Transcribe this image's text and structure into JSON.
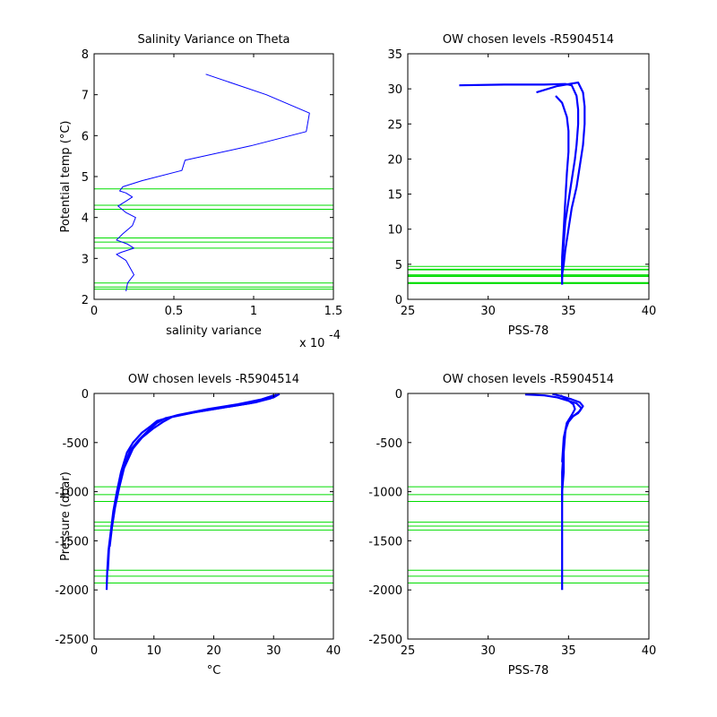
{
  "chart_data": [
    {
      "type": "line",
      "title": "Salinity Variance on Theta",
      "xlabel": "salinity variance",
      "ylabel": "Potential temp (°C)",
      "x_multiplier_label": "x 10",
      "x_multiplier_exp": "-4",
      "xlim": [
        0,
        1.5
      ],
      "ylim": [
        2,
        8
      ],
      "xticks": [
        0,
        0.5,
        1,
        1.5
      ],
      "yticks": [
        2,
        3,
        4,
        5,
        6,
        7,
        8
      ],
      "series": [
        {
          "color": "#0000ff",
          "x": [
            0.7,
            1.08,
            1.35,
            1.33,
            0.98,
            0.57,
            0.55,
            0.3,
            0.18,
            0.16,
            0.2,
            0.24,
            0.2,
            0.15,
            0.2,
            0.26,
            0.24,
            0.18,
            0.14,
            0.21,
            0.25,
            0.17,
            0.14,
            0.2,
            0.25,
            0.21,
            0.2
          ],
          "y": [
            7.5,
            7.0,
            6.55,
            6.1,
            5.75,
            5.4,
            5.15,
            4.9,
            4.75,
            4.65,
            4.6,
            4.5,
            4.4,
            4.28,
            4.12,
            4.0,
            3.8,
            3.6,
            3.45,
            3.35,
            3.25,
            3.15,
            3.1,
            2.95,
            2.6,
            2.4,
            2.2
          ]
        }
      ],
      "hlines": [
        4.7,
        4.3,
        4.2,
        3.5,
        3.4,
        3.25,
        2.4,
        2.3,
        2.25
      ],
      "hline_color": "#00dd00"
    },
    {
      "type": "line",
      "title": "OW chosen levels -R5904514",
      "xlabel": "PSS-78",
      "ylabel": "",
      "xlim": [
        25,
        40
      ],
      "ylim": [
        0,
        35
      ],
      "xticks": [
        25,
        30,
        35,
        40
      ],
      "yticks": [
        0,
        5,
        10,
        15,
        20,
        25,
        30,
        35
      ],
      "series": [
        {
          "color": "#0000ff",
          "x": [
            28.2,
            31.0,
            33.5,
            34.8,
            35.2,
            35.5,
            35.6,
            35.6,
            35.5,
            35.4,
            35.2,
            35.0,
            34.8,
            34.7,
            34.6,
            34.6,
            34.6
          ],
          "y": [
            30.5,
            30.6,
            30.6,
            30.7,
            30.5,
            29.0,
            27.0,
            25.0,
            22.0,
            20.0,
            17.0,
            14.0,
            11.0,
            8.0,
            5.0,
            3.0,
            2.1
          ]
        },
        {
          "color": "#0000ff",
          "x": [
            33.0,
            34.3,
            35.6,
            35.9,
            36.0,
            36.0,
            35.9,
            35.7,
            35.5,
            35.2,
            35.0,
            34.8,
            34.7,
            34.6
          ],
          "y": [
            29.5,
            30.4,
            30.9,
            29.5,
            27.5,
            25.0,
            22.0,
            19.0,
            16.0,
            13.0,
            10.0,
            7.0,
            5.0,
            3.5
          ]
        },
        {
          "color": "#0000ff",
          "x": [
            34.2,
            34.6,
            34.9,
            35.0,
            35.0,
            34.9,
            34.8,
            34.7,
            34.6,
            34.6
          ],
          "y": [
            29.0,
            28.0,
            26.0,
            24.0,
            21.0,
            18.0,
            14.0,
            10.0,
            6.0,
            3.0
          ]
        }
      ],
      "hlines": [
        4.7,
        4.3,
        4.2,
        3.5,
        3.4,
        3.25,
        2.4,
        2.3,
        2.25
      ],
      "hline_color": "#00dd00"
    },
    {
      "type": "line",
      "title": "OW chosen levels -R5904514",
      "xlabel": "°C",
      "ylabel": "Pressure (dbar)",
      "xlim": [
        0,
        40
      ],
      "ylim": [
        -2500,
        0
      ],
      "xticks": [
        0,
        10,
        20,
        30,
        40
      ],
      "yticks": [
        -2500,
        -2000,
        -1500,
        -1000,
        -500,
        0
      ],
      "series": [
        {
          "color": "#0000ff",
          "x": [
            30.0,
            28.0,
            24.0,
            19.0,
            14.0,
            10.5,
            9.5,
            8.0,
            6.5,
            5.5,
            4.5,
            3.8,
            3.2,
            2.8,
            2.4,
            2.2,
            2.1
          ],
          "y": [
            -20,
            -60,
            -110,
            -160,
            -220,
            -280,
            -330,
            -400,
            -500,
            -600,
            -800,
            -1000,
            -1200,
            -1400,
            -1600,
            -1800,
            -2000
          ]
        },
        {
          "color": "#0000ff",
          "x": [
            30.5,
            29.5,
            26.0,
            21.0,
            16.0,
            12.0,
            10.5,
            9.0,
            7.5,
            6.0,
            4.8,
            4.0,
            3.4,
            2.9,
            2.5,
            2.3
          ],
          "y": [
            -10,
            -50,
            -100,
            -150,
            -200,
            -250,
            -300,
            -380,
            -470,
            -580,
            -780,
            -980,
            -1180,
            -1380,
            -1580,
            -1800
          ]
        },
        {
          "color": "#0000ff",
          "x": [
            31.0,
            30.0,
            27.0,
            22.0,
            17.0,
            13.0,
            11.5,
            9.8,
            8.0,
            6.5,
            5.0,
            4.2,
            3.5,
            3.0,
            2.6
          ],
          "y": [
            -5,
            -40,
            -90,
            -140,
            -190,
            -240,
            -290,
            -360,
            -450,
            -560,
            -760,
            -960,
            -1160,
            -1360,
            -1560
          ]
        }
      ],
      "hlines": [
        -950,
        -1030,
        -1100,
        -1310,
        -1350,
        -1390,
        -1800,
        -1860,
        -1930
      ],
      "hline_color": "#00dd00"
    },
    {
      "type": "line",
      "title": "OW chosen levels -R5904514",
      "xlabel": "PSS-78",
      "ylabel": "",
      "xlim": [
        25,
        40
      ],
      "ylim": [
        -2500,
        0
      ],
      "xticks": [
        25,
        30,
        35,
        40
      ],
      "yticks": [
        -2500,
        -2000,
        -1500,
        -1000,
        -500,
        0
      ],
      "series": [
        {
          "color": "#0000ff",
          "x": [
            32.3,
            33.5,
            34.3,
            34.9,
            35.5,
            35.8,
            35.6,
            35.1,
            34.9,
            34.8,
            34.7,
            34.7,
            34.6,
            34.6,
            34.6,
            34.6
          ],
          "y": [
            -10,
            -20,
            -40,
            -70,
            -100,
            -150,
            -200,
            -250,
            -300,
            -400,
            -600,
            -800,
            -1000,
            -1400,
            -1800,
            -2000
          ]
        },
        {
          "color": "#0000ff",
          "x": [
            34.0,
            34.6,
            35.2,
            35.7,
            35.9,
            35.7,
            35.3,
            35.0,
            34.8,
            34.7,
            34.6,
            34.6
          ],
          "y": [
            -5,
            -30,
            -60,
            -90,
            -130,
            -180,
            -230,
            -290,
            -380,
            -550,
            -800,
            -1100
          ]
        },
        {
          "color": "#0000ff",
          "x": [
            34.5,
            34.9,
            35.3,
            35.4,
            35.2,
            34.9,
            34.7,
            34.6
          ],
          "y": [
            -20,
            -60,
            -110,
            -160,
            -220,
            -300,
            -450,
            -700
          ]
        }
      ],
      "hlines": [
        -950,
        -1030,
        -1100,
        -1310,
        -1350,
        -1390,
        -1800,
        -1860,
        -1930
      ],
      "hline_color": "#00dd00"
    }
  ]
}
